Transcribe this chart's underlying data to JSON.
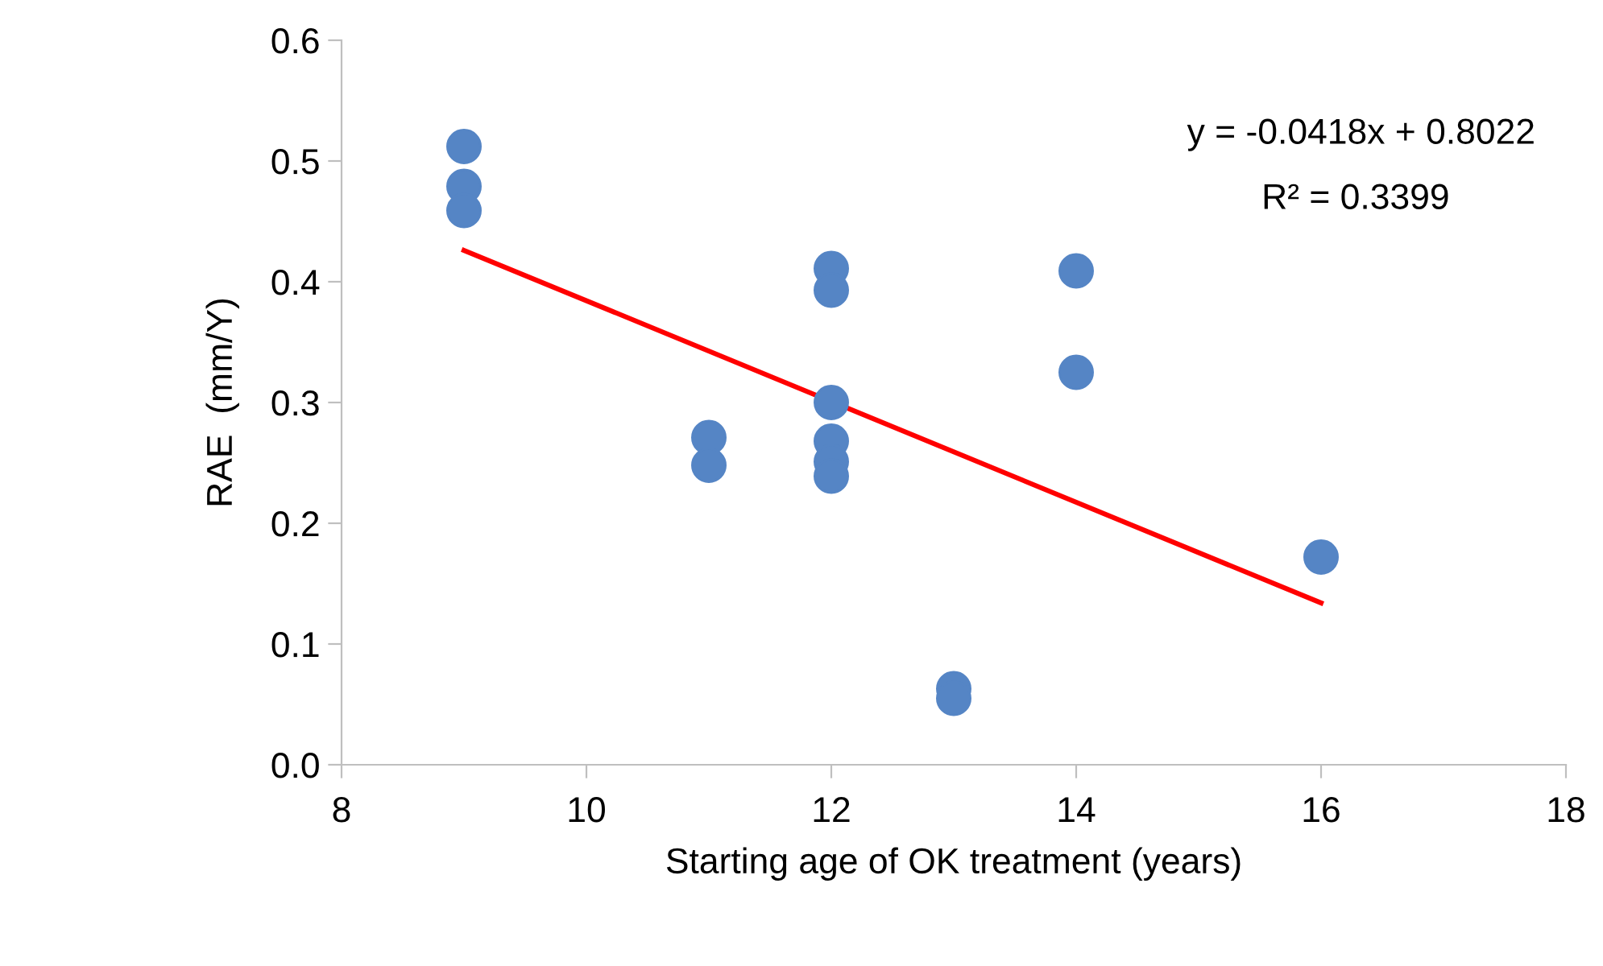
{
  "chart_data": {
    "type": "scatter",
    "xlabel": "Starting age of OK treatment (years)",
    "ylabel": "RAE  (mm/Y)",
    "series": [
      {
        "color": "#5585c5",
        "x": [
          9,
          9,
          9,
          11,
          11,
          12,
          12,
          12,
          12,
          12,
          12,
          13,
          13,
          14,
          14,
          16
        ],
        "values": [
          0.512,
          0.479,
          0.459,
          0.271,
          0.248,
          0.411,
          0.393,
          0.3,
          0.268,
          0.251,
          0.239,
          0.063,
          0.055,
          0.409,
          0.325,
          0.172
        ]
      },
      {
        "type": "line",
        "color": "#ff0000",
        "x": [
          9,
          16
        ],
        "values": [
          0.426,
          0.134
        ],
        "marker": "none"
      }
    ],
    "annotations": [
      "y = -0.0418x + 0.8022",
      "R² = 0.3399"
    ],
    "marker": "circle",
    "grid": false,
    "xlim": [
      8,
      18
    ],
    "xticks": [
      8,
      10,
      12,
      14,
      16,
      18
    ],
    "ylim": [
      0,
      0.6
    ],
    "yticks": [
      {
        "value": 0,
        "label": "0.0"
      },
      0.1,
      0.2,
      0.3,
      0.4,
      0.5,
      0.6
    ]
  }
}
